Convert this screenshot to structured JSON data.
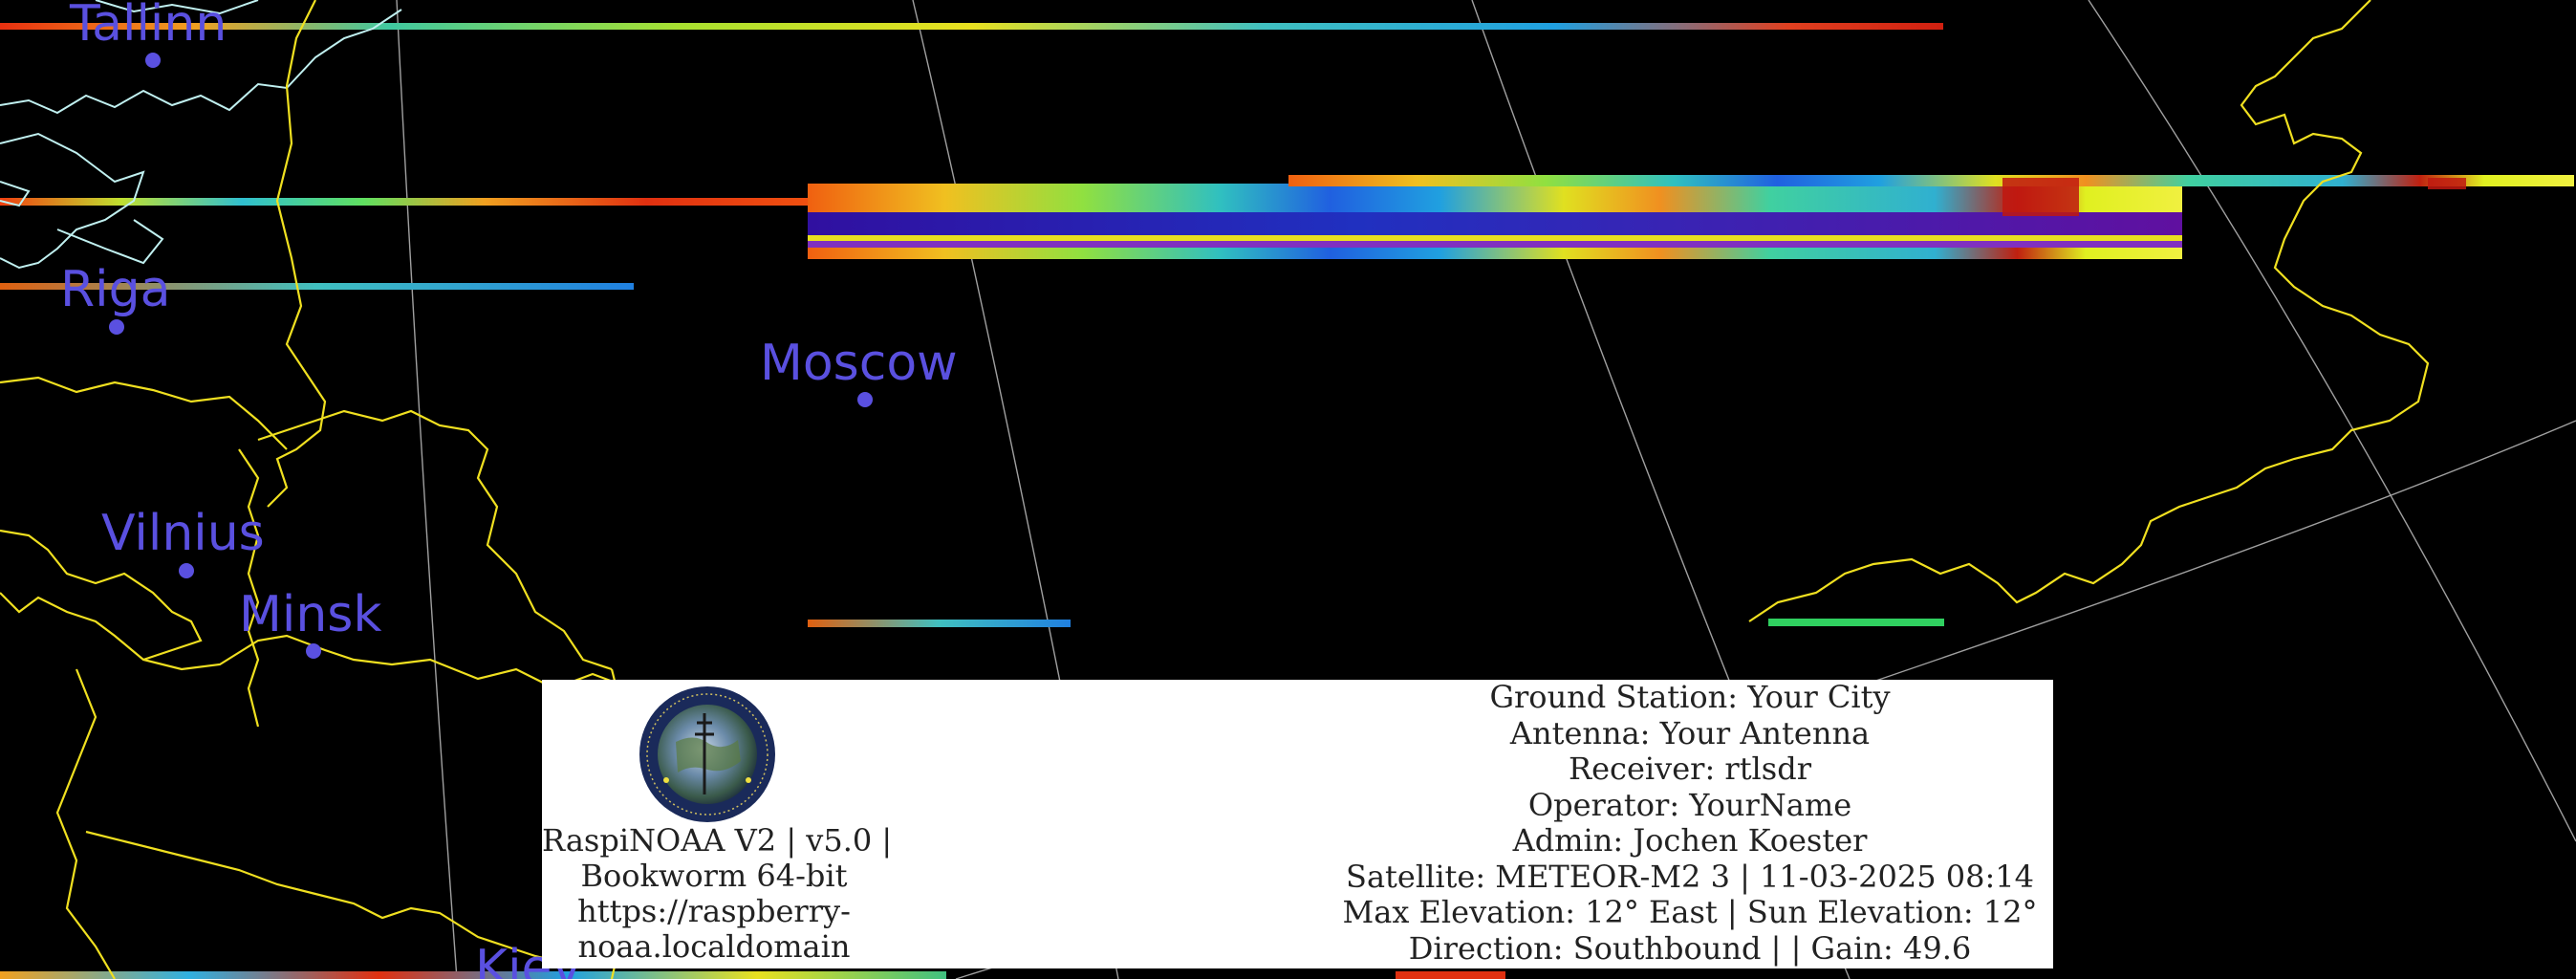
{
  "map": {
    "cities": [
      {
        "name": "Tallinn"
      },
      {
        "name": "Riga"
      },
      {
        "name": "Moscow"
      },
      {
        "name": "Vilnius"
      },
      {
        "name": "Minsk"
      },
      {
        "name": "Kiev"
      }
    ],
    "colors": {
      "background": "#000000",
      "borders": "#f0e020",
      "coastline": "#c0f0f0",
      "graticule": "#c8c8c8",
      "city": "#5a50e0",
      "panel": "#ffffff"
    },
    "icons": [
      "station-logo-icon"
    ]
  },
  "panel": {
    "software_lines": [
      "RaspiNOAA V2 | v5.0 |",
      "Bookworm 64-bit",
      "https://raspberry-",
      "noaa.localdomain"
    ],
    "station_lines": [
      "Ground Station: Your City",
      "Antenna: Your Antenna",
      "Receiver: rtlsdr",
      "Operator: YourName",
      "Admin: Jochen Koester",
      "Satellite: METEOR-M2 3 | 11-03-2025 08:14",
      "Max Elevation: 12° East | Sun Elevation: 12°",
      "Direction: Southbound | | Gain: 49.6"
    ]
  }
}
